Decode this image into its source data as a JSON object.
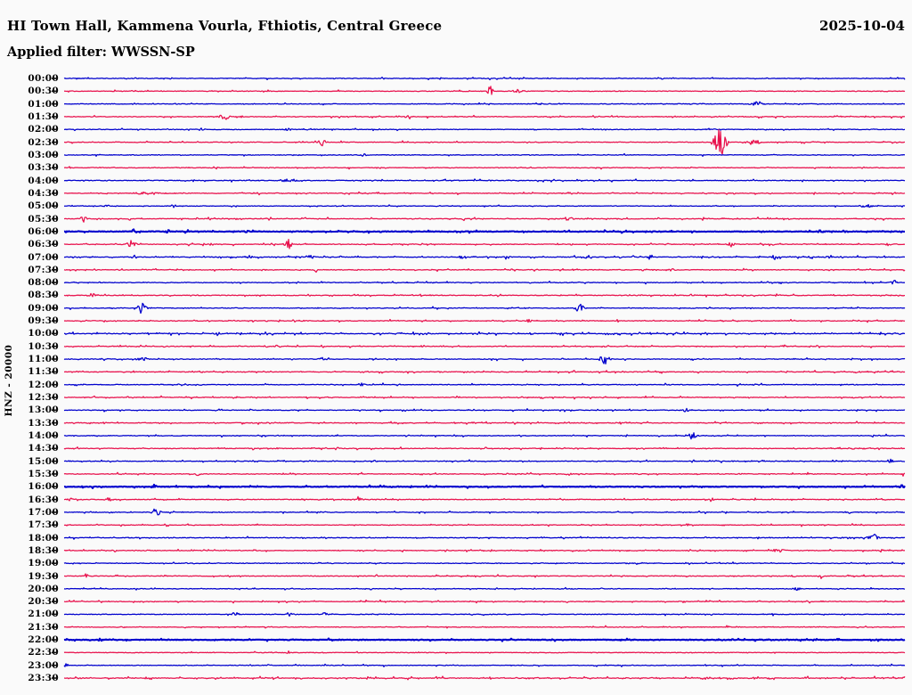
{
  "header": {
    "title": "HI Town Hall, Kammena Vourla, Fthiotis, Central Greece",
    "date": "2025-10-04",
    "filter_label": "Applied filter: WWSSN-SP"
  },
  "y_axis_label": "HNZ - 20000",
  "colors": {
    "trace_blue": "#0000cd",
    "trace_red": "#e8124d",
    "tick": "#111111",
    "text": "#000000",
    "background": "#fafafa"
  },
  "chart_data": {
    "type": "line",
    "subtype": "helicorder-seismogram",
    "title": "HI Town Hall, Kammena Vourla, Fthiotis, Central Greece",
    "date": "2025-10-04",
    "applied_filter": "WWSSN-SP",
    "channel": "HNZ",
    "scale": 20000,
    "row_duration_minutes": 30,
    "rows_start": "00:00",
    "rows_end": "23:30",
    "legend_position": "none",
    "grid": false,
    "rows": [
      {
        "time": "00:00",
        "color": "blue",
        "d": 0.12,
        "a": 1.3,
        "ev": []
      },
      {
        "time": "00:30",
        "color": "red",
        "d": 0.04,
        "a": 1.2,
        "ev": [
          {
            "t": 15.2,
            "a": 8,
            "dur": 10
          },
          {
            "t": 16.2,
            "a": 2.5,
            "dur": 18
          }
        ]
      },
      {
        "time": "01:00",
        "color": "blue",
        "d": 0.07,
        "a": 1.2,
        "ev": [
          {
            "t": 24.7,
            "a": 3.5,
            "dur": 22
          }
        ]
      },
      {
        "time": "01:30",
        "color": "red",
        "d": 0.12,
        "a": 1.3,
        "ev": [
          {
            "t": 5.7,
            "a": 4,
            "dur": 20
          },
          {
            "t": 12.3,
            "a": 3,
            "dur": 12
          }
        ]
      },
      {
        "time": "02:00",
        "color": "blue",
        "d": 0.05,
        "a": 1.2,
        "ev": [
          {
            "t": 4.9,
            "a": 2,
            "dur": 12
          },
          {
            "t": 8.0,
            "a": 2,
            "dur": 12
          },
          {
            "t": 23.0,
            "a": 1.5,
            "dur": 12
          }
        ]
      },
      {
        "time": "02:30",
        "color": "red",
        "d": 0.08,
        "a": 1.3,
        "ev": [
          {
            "t": 9.2,
            "a": 4,
            "dur": 18
          },
          {
            "t": 23.4,
            "a": 16,
            "dur": 26
          },
          {
            "t": 24.6,
            "a": 3,
            "dur": 30
          }
        ]
      },
      {
        "time": "03:00",
        "color": "blue",
        "d": 0.05,
        "a": 1.2,
        "ev": [
          {
            "t": 10.7,
            "a": 1.5,
            "dur": 12
          }
        ]
      },
      {
        "time": "03:30",
        "color": "red",
        "d": 0.08,
        "a": 1.2,
        "ev": [
          {
            "t": 0.2,
            "a": 2,
            "dur": 8
          }
        ]
      },
      {
        "time": "04:00",
        "color": "blue",
        "d": 0.1,
        "a": 1.3,
        "ev": [
          {
            "t": 8.0,
            "a": 1.8,
            "dur": 40
          }
        ]
      },
      {
        "time": "04:30",
        "color": "red",
        "d": 0.14,
        "a": 1.3,
        "ev": [
          {
            "t": 3.0,
            "a": 1.5,
            "dur": 60
          }
        ]
      },
      {
        "time": "05:00",
        "color": "blue",
        "d": 0.06,
        "a": 1.2,
        "ev": [
          {
            "t": 1.5,
            "a": 2,
            "dur": 10
          },
          {
            "t": 3.9,
            "a": 2,
            "dur": 10
          },
          {
            "t": 28.6,
            "a": 2.5,
            "dur": 25
          }
        ]
      },
      {
        "time": "05:30",
        "color": "red",
        "d": 0.14,
        "a": 1.5,
        "ev": [
          {
            "t": 0.7,
            "a": 7,
            "dur": 10
          },
          {
            "t": 18.0,
            "a": 2,
            "dur": 18
          }
        ]
      },
      {
        "time": "06:00",
        "color": "blue",
        "d": 0.1,
        "a": 1.3,
        "bold": true,
        "ev": [
          {
            "t": 2.5,
            "a": 3,
            "dur": 12
          },
          {
            "t": 3.7,
            "a": 2,
            "dur": 10
          },
          {
            "t": 6.5,
            "a": 2,
            "dur": 10
          },
          {
            "t": 27.0,
            "a": 1.5,
            "dur": 12
          }
        ]
      },
      {
        "time": "06:30",
        "color": "red",
        "d": 0.12,
        "a": 1.3,
        "ev": [
          {
            "t": 2.4,
            "a": 6,
            "dur": 15
          },
          {
            "t": 8.0,
            "a": 6,
            "dur": 15
          },
          {
            "t": 23.8,
            "a": 3,
            "dur": 18
          }
        ]
      },
      {
        "time": "07:00",
        "color": "blue",
        "d": 0.16,
        "a": 1.4,
        "ev": [
          {
            "t": 2.5,
            "a": 3,
            "dur": 12
          },
          {
            "t": 6.6,
            "a": 3,
            "dur": 18
          },
          {
            "t": 8.8,
            "a": 2,
            "dur": 12
          },
          {
            "t": 14.2,
            "a": 3,
            "dur": 12
          },
          {
            "t": 15.8,
            "a": 3,
            "dur": 12
          },
          {
            "t": 18.7,
            "a": 3,
            "dur": 12
          },
          {
            "t": 20.9,
            "a": 3.5,
            "dur": 12
          },
          {
            "t": 25.4,
            "a": 3.5,
            "dur": 18
          },
          {
            "t": 27.3,
            "a": 3,
            "dur": 12
          }
        ]
      },
      {
        "time": "07:30",
        "color": "red",
        "d": 0.12,
        "a": 1.3,
        "ev": [
          {
            "t": 9.0,
            "a": 2,
            "dur": 12
          },
          {
            "t": 21.7,
            "a": 2,
            "dur": 12
          }
        ]
      },
      {
        "time": "08:00",
        "color": "blue",
        "d": 0.1,
        "a": 1.3,
        "ev": [
          {
            "t": 29.6,
            "a": 3,
            "dur": 12
          }
        ]
      },
      {
        "time": "08:30",
        "color": "red",
        "d": 0.14,
        "a": 1.3,
        "ev": [
          {
            "t": 1.0,
            "a": 2,
            "dur": 25
          }
        ]
      },
      {
        "time": "09:00",
        "color": "blue",
        "d": 0.1,
        "a": 1.3,
        "ev": [
          {
            "t": 2.8,
            "a": 8,
            "dur": 18
          },
          {
            "t": 18.4,
            "a": 5,
            "dur": 20
          }
        ]
      },
      {
        "time": "09:30",
        "color": "red",
        "d": 0.14,
        "a": 1.3,
        "ev": [
          {
            "t": 16.6,
            "a": 3,
            "dur": 10
          }
        ]
      },
      {
        "time": "10:00",
        "color": "blue",
        "d": 0.22,
        "a": 1.6,
        "ev": [
          {
            "t": 5.5,
            "a": 2.5,
            "dur": 12
          }
        ]
      },
      {
        "time": "10:30",
        "color": "red",
        "d": 0.16,
        "a": 1.3,
        "ev": [
          {
            "t": 25.7,
            "a": 3,
            "dur": 10
          }
        ]
      },
      {
        "time": "11:00",
        "color": "blue",
        "d": 0.1,
        "a": 1.3,
        "ev": [
          {
            "t": 2.8,
            "a": 2,
            "dur": 25
          },
          {
            "t": 9.2,
            "a": 3.5,
            "dur": 10
          },
          {
            "t": 19.3,
            "a": 6,
            "dur": 20
          }
        ]
      },
      {
        "time": "11:30",
        "color": "red",
        "d": 0.16,
        "a": 1.3,
        "ev": []
      },
      {
        "time": "12:00",
        "color": "blue",
        "d": 0.1,
        "a": 1.3,
        "ev": [
          {
            "t": 10.6,
            "a": 3,
            "dur": 10
          }
        ]
      },
      {
        "time": "12:30",
        "color": "red",
        "d": 0.14,
        "a": 1.3,
        "ev": []
      },
      {
        "time": "13:00",
        "color": "blue",
        "d": 0.1,
        "a": 1.3,
        "ev": [
          {
            "t": 22.2,
            "a": 2.5,
            "dur": 12
          }
        ]
      },
      {
        "time": "13:30",
        "color": "red",
        "d": 0.16,
        "a": 1.3,
        "ev": []
      },
      {
        "time": "14:00",
        "color": "blue",
        "d": 0.08,
        "a": 1.3,
        "ev": [
          {
            "t": 13.9,
            "a": 2,
            "dur": 10
          },
          {
            "t": 22.4,
            "a": 6,
            "dur": 15
          }
        ]
      },
      {
        "time": "14:30",
        "color": "red",
        "d": 0.15,
        "a": 1.3,
        "ev": []
      },
      {
        "time": "15:00",
        "color": "blue",
        "d": 0.12,
        "a": 1.3,
        "ev": [
          {
            "t": 29.5,
            "a": 2.5,
            "dur": 12
          }
        ]
      },
      {
        "time": "15:30",
        "color": "red",
        "d": 0.13,
        "a": 1.3,
        "ev": [
          {
            "t": 4.8,
            "a": 2.5,
            "dur": 12
          },
          {
            "t": 18.0,
            "a": 2.5,
            "dur": 12
          },
          {
            "t": 26.6,
            "a": 2.5,
            "dur": 12
          },
          {
            "t": 29.9,
            "a": 3,
            "dur": 10
          }
        ]
      },
      {
        "time": "16:00",
        "color": "blue",
        "d": 0.08,
        "a": 1.3,
        "bold": true,
        "ev": [
          {
            "t": 3.2,
            "a": 3,
            "dur": 10
          },
          {
            "t": 29.9,
            "a": 3,
            "dur": 12
          }
        ]
      },
      {
        "time": "16:30",
        "color": "red",
        "d": 0.12,
        "a": 1.3,
        "ev": [
          {
            "t": 0.2,
            "a": 3,
            "dur": 10
          },
          {
            "t": 1.6,
            "a": 3,
            "dur": 10
          },
          {
            "t": 10.5,
            "a": 2,
            "dur": 25
          },
          {
            "t": 23.1,
            "a": 3,
            "dur": 10
          }
        ]
      },
      {
        "time": "17:00",
        "color": "blue",
        "d": 0.1,
        "a": 1.3,
        "ev": [
          {
            "t": 3.3,
            "a": 6,
            "dur": 15
          },
          {
            "t": 28.0,
            "a": 2,
            "dur": 12
          }
        ]
      },
      {
        "time": "17:30",
        "color": "red",
        "d": 0.1,
        "a": 1.3,
        "ev": []
      },
      {
        "time": "18:00",
        "color": "blue",
        "d": 0.12,
        "a": 1.3,
        "ev": [
          {
            "t": 28.9,
            "a": 4,
            "dur": 25
          }
        ]
      },
      {
        "time": "18:30",
        "color": "red",
        "d": 0.13,
        "a": 1.3,
        "ev": [
          {
            "t": 25.5,
            "a": 2.5,
            "dur": 25
          }
        ]
      },
      {
        "time": "19:00",
        "color": "blue",
        "d": 0.1,
        "a": 1.3,
        "ev": []
      },
      {
        "time": "19:30",
        "color": "red",
        "d": 0.1,
        "a": 1.3,
        "ev": [
          {
            "t": 0.8,
            "a": 4,
            "dur": 10
          },
          {
            "t": 26.0,
            "a": 2,
            "dur": 12
          },
          {
            "t": 27.0,
            "a": 3,
            "dur": 10
          }
        ]
      },
      {
        "time": "20:00",
        "color": "blue",
        "d": 0.12,
        "a": 1.3,
        "ev": [
          {
            "t": 26.2,
            "a": 3,
            "dur": 15
          }
        ]
      },
      {
        "time": "20:30",
        "color": "red",
        "d": 0.12,
        "a": 1.3,
        "ev": []
      },
      {
        "time": "21:00",
        "color": "blue",
        "d": 0.06,
        "a": 1.2,
        "ev": [
          {
            "t": 6.1,
            "a": 3,
            "dur": 15
          },
          {
            "t": 8.0,
            "a": 2.5,
            "dur": 12
          },
          {
            "t": 9.3,
            "a": 2,
            "dur": 12
          }
        ]
      },
      {
        "time": "21:30",
        "color": "red",
        "d": 0.06,
        "a": 1.2,
        "ev": []
      },
      {
        "time": "22:00",
        "color": "blue",
        "d": 0.14,
        "a": 1.3,
        "bold": true,
        "ev": []
      },
      {
        "time": "22:30",
        "color": "red",
        "d": 0.04,
        "a": 1.2,
        "ev": [
          {
            "t": 8.0,
            "a": 2,
            "dur": 8
          }
        ]
      },
      {
        "time": "23:00",
        "color": "blue",
        "d": 0.05,
        "a": 1.2,
        "ev": [
          {
            "t": 0.1,
            "a": 3,
            "dur": 10
          },
          {
            "t": 7.3,
            "a": 2.5,
            "dur": 10
          }
        ]
      },
      {
        "time": "23:30",
        "color": "red",
        "d": 0.22,
        "a": 1.6,
        "ev": []
      }
    ]
  }
}
